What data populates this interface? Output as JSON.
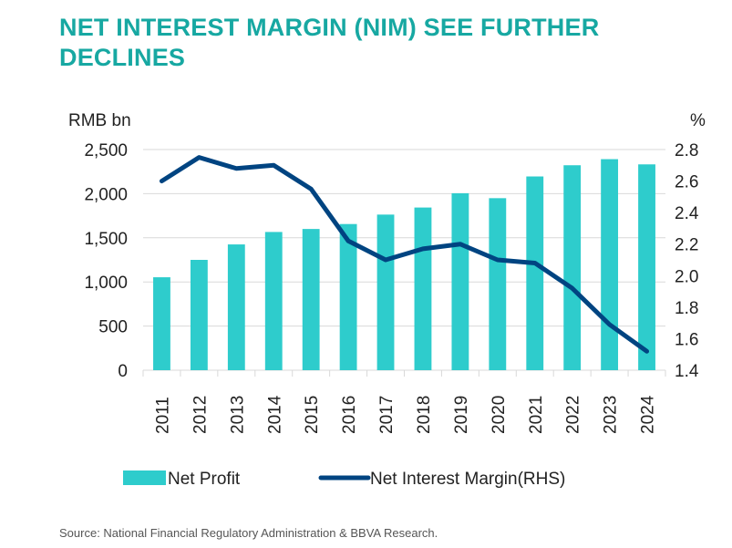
{
  "title": "NET INTEREST MARGIN (NIM) SEE FURTHER DECLINES",
  "source": "Source: National Financial Regulatory Administration & BBVA Research.",
  "colors": {
    "bar": "#2ecccc",
    "line": "#004481",
    "title": "#17a8a2"
  },
  "chart_data": {
    "type": "bar+line",
    "categories": [
      "2011",
      "2012",
      "2013",
      "2014",
      "2015",
      "2016",
      "2017",
      "2018",
      "2019",
      "2020",
      "2021",
      "2022",
      "2023",
      "2024"
    ],
    "series": [
      {
        "name": "Net Profit",
        "type": "bar",
        "axis": "left",
        "values": [
          1053,
          1250,
          1425,
          1566,
          1600,
          1656,
          1763,
          1843,
          2005,
          1949,
          2195,
          2322,
          2391,
          2332
        ]
      },
      {
        "name": "Net Interest Margin(RHS)",
        "type": "line",
        "axis": "right",
        "values": [
          2.6,
          2.75,
          2.68,
          2.7,
          2.55,
          2.22,
          2.1,
          2.17,
          2.2,
          2.1,
          2.08,
          1.92,
          1.69,
          1.52
        ]
      }
    ],
    "ylabel_left": "RMB bn",
    "ylabel_right": "%",
    "ylim_left": [
      0,
      2500
    ],
    "yticks_left": [
      "0",
      "500",
      "1,000",
      "1,500",
      "2,000",
      "2,500"
    ],
    "ylim_right": [
      1.4,
      2.8
    ],
    "yticks_right": [
      "1.4",
      "1.6",
      "1.8",
      "2.0",
      "2.2",
      "2.4",
      "2.6",
      "2.8"
    ],
    "grid": true,
    "legend_position": "bottom"
  }
}
